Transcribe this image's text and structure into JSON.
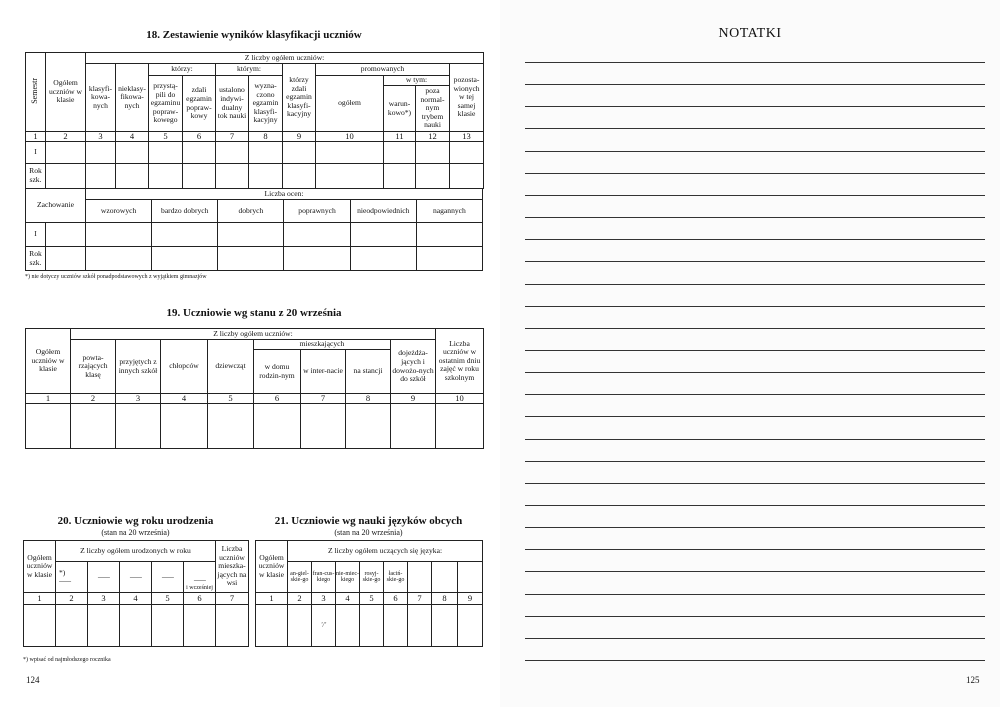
{
  "left_page": {
    "page_number": "124",
    "t18": {
      "title": "18. Zestawienie wyników klasyfikacji uczniów",
      "semestr": "Semestr",
      "ogolem": "Ogółem uczniów w klasie",
      "z_liczby": "Z liczby ogółem uczniów:",
      "klasyfikowanych": "klasyfi-kowa-nych",
      "nieklasyfikowanych": "nieklasy-fikowa-nych",
      "ktorzy": "którzy:",
      "ktorym": "którym:",
      "przystapili": "przystą-pili do egzaminu popraw-kowego",
      "zdali_poprawkowy": "zdali egzamin popraw-kowy",
      "ustalono": "ustalono indywi-dualny tok nauki",
      "wyznaczono": "wyzna-czono egzamin klasyfi-kacyjny",
      "zdali_klasyfikacyjny": "którzy zdali egzamin klasyfi-kacyjny",
      "promowanych": "promowanych",
      "ogolem_prom": "ogółem",
      "w_tym": "w tym:",
      "warunkowo": "warun-kowo*)",
      "poza_trybem": "poza normal-nym trybem nauki",
      "pozostawionych": "pozosta-wionych w tej samej klasie",
      "column_numbers": [
        "1",
        "2",
        "3",
        "4",
        "5",
        "6",
        "7",
        "8",
        "9",
        "10",
        "11",
        "12",
        "13"
      ],
      "row_labels": [
        "I",
        "Rok szk."
      ],
      "zachowanie": "Zachowanie",
      "liczba_ocen": "Liczba ocen:",
      "oceny": [
        "wzorowych",
        "bardzo dobrych",
        "dobrych",
        "poprawnych",
        "nieodpowiednich",
        "nagannych"
      ],
      "footnote": "*) nie dotyczy uczniów szkół ponadpodstawowych z wyjątkiem gimnazjów"
    },
    "t19": {
      "title": "19. Uczniowie wg stanu z 20 września",
      "ogolem": "Ogółem uczniów w klasie",
      "z_liczby": "Z liczby ogółem uczniów:",
      "powtarzajacych": "powta-rzających klasę",
      "przyjetych": "przyjętych z innych szkół",
      "chlopcow": "chłopców",
      "dziewczat": "dziewcząt",
      "mieszkajacych": "mieszkających",
      "w_domu": "w domu rodzin-nym",
      "w_internacie": "w inter-nacie",
      "na_stancji": "na stancji",
      "dojezdzajacych": "dojeżdża-jących i dowożo-nych do szkół",
      "liczba_ostatni": "Liczba uczniów w ostatnim dniu zajęć w roku szkolnym",
      "column_numbers": [
        "1",
        "2",
        "3",
        "4",
        "5",
        "6",
        "7",
        "8",
        "9",
        "10"
      ]
    },
    "t20": {
      "title": "20. Uczniowie wg roku urodzenia",
      "subtitle": "(stan na 20 września)",
      "ogolem": "Ogółem uczniów w klasie",
      "z_liczby": "Z liczby ogółem urodzonych w roku",
      "star": "*)",
      "dots": "............",
      "i_wczesniej": "i wcześniej",
      "mieszkajacych_wsi": "Liczba uczniów mieszka-jących na wsi",
      "column_numbers": [
        "1",
        "2",
        "3",
        "4",
        "5",
        "6",
        "7"
      ],
      "footnote": "*) wpisać od najmłodszego rocznika"
    },
    "t21": {
      "title": "21. Uczniowie wg nauki języków obcych",
      "subtitle": "(stan na 20 września)",
      "ogolem": "Ogółem uczniów w klasie",
      "z_liczby": "Z liczby ogółem uczących się języka:",
      "jezyki": [
        "an-giel-skie-go",
        "fran-cus-kiego",
        "nie-miec-kiego",
        "rosyj-skie-go",
        "łaciń-skie-go",
        "",
        "",
        ""
      ],
      "column_numbers": [
        "1",
        "2",
        "3",
        "4",
        "5",
        "6",
        "7",
        "8",
        "9"
      ],
      "handwritten_mark": "'/'"
    }
  },
  "right_page": {
    "title": "NOTATKI",
    "page_number": "125",
    "ruled_line_count": 28
  }
}
